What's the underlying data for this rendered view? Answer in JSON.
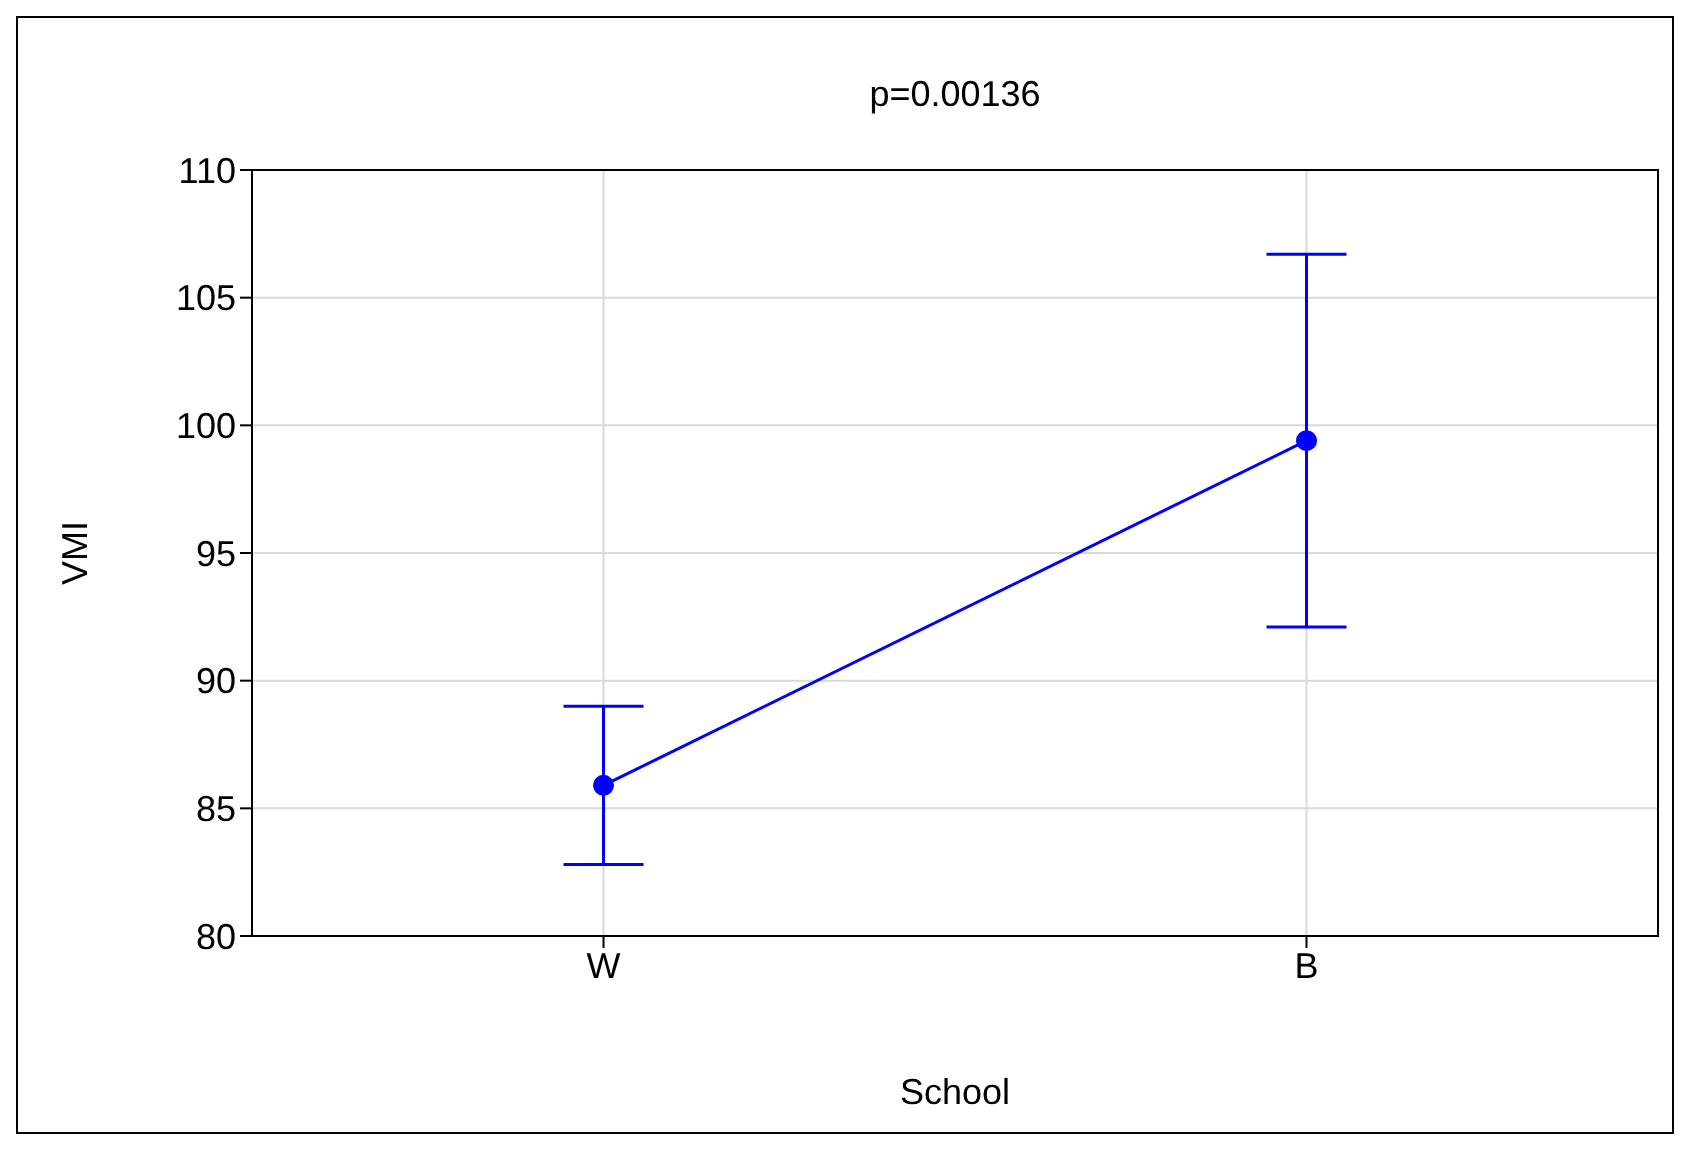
{
  "chart_data": {
    "type": "line",
    "title": "p=0.00136",
    "xlabel": "School",
    "ylabel": "VMI",
    "categories": [
      "W",
      "B"
    ],
    "series": [
      {
        "color": "#0000ff",
        "values": [
          85.9,
          99.4
        ],
        "errors": [
          3.1,
          7.3
        ]
      }
    ],
    "ylim": [
      80,
      110
    ],
    "yticks": [
      80,
      85,
      90,
      95,
      100,
      105,
      110
    ],
    "grid": true,
    "legend": false,
    "marker": "circle",
    "line_style": "solid"
  }
}
